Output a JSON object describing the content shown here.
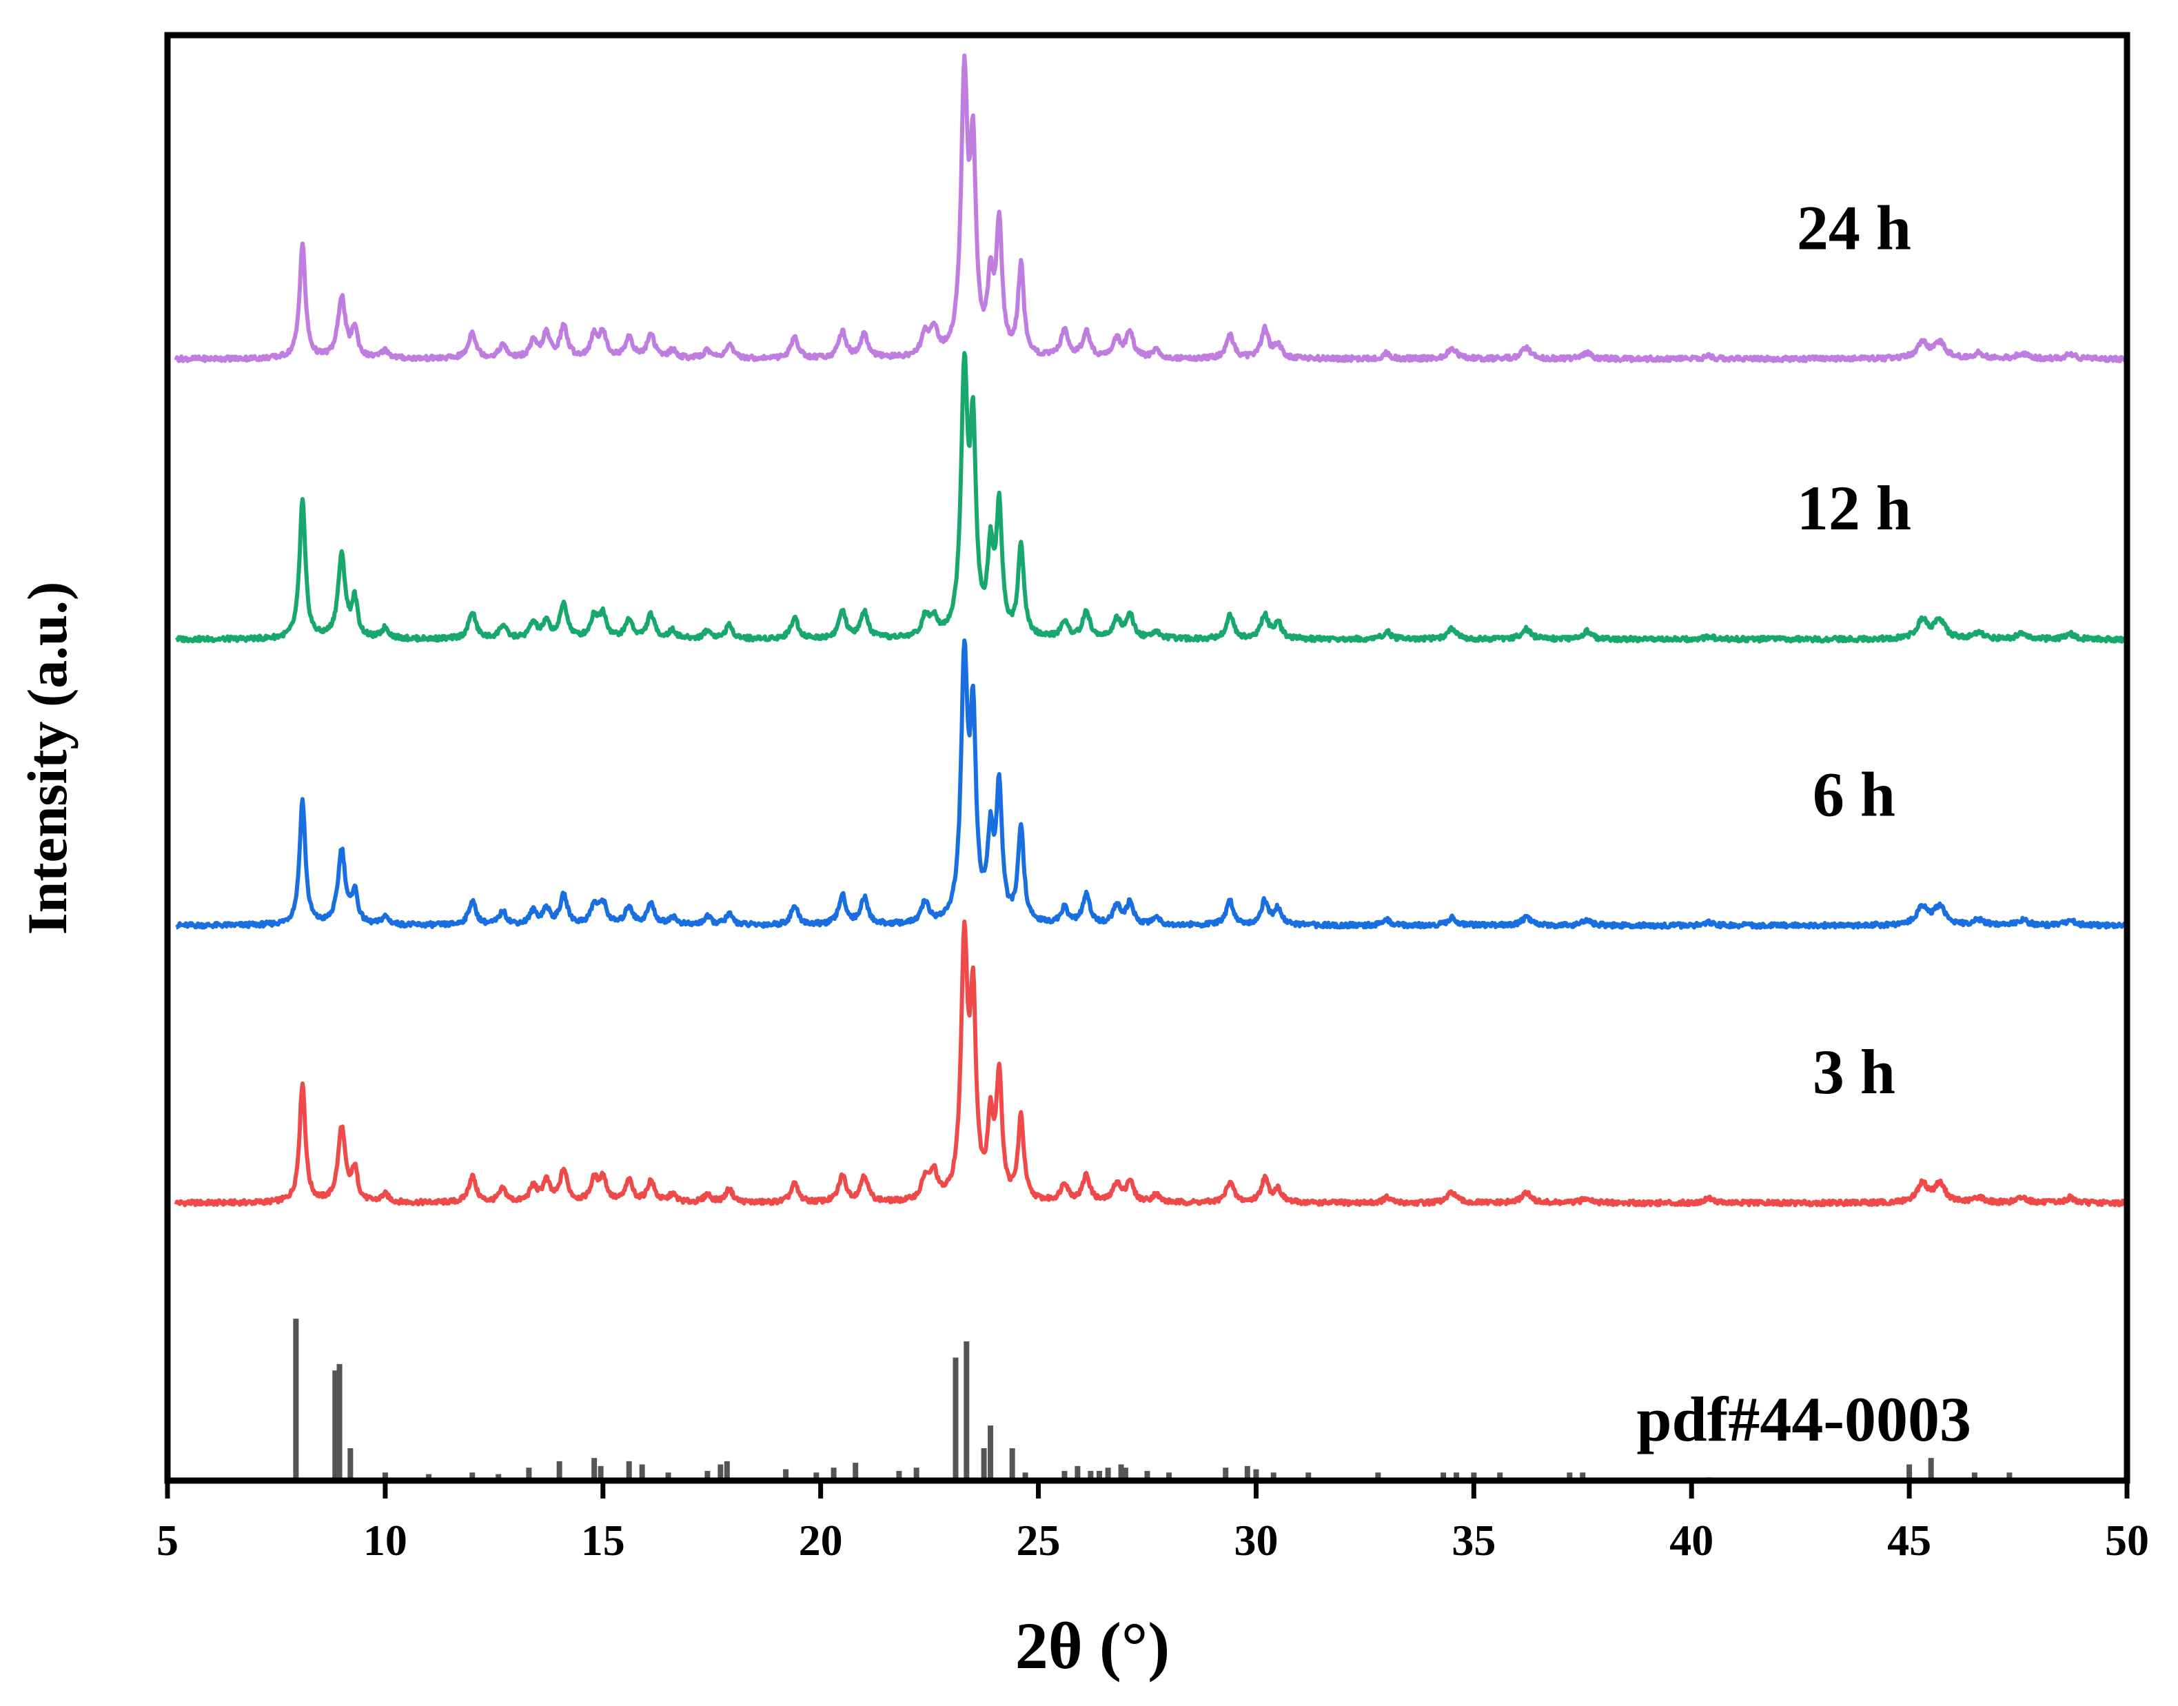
{
  "chart_data": {
    "type": "line",
    "title": "",
    "xlabel": "2θ (°)",
    "ylabel": "Intensity (a.u.)",
    "xlim": [
      5,
      50
    ],
    "ylim": [
      0,
      5
    ],
    "xticks": [
      5,
      10,
      15,
      20,
      25,
      30,
      35,
      40,
      45,
      50
    ],
    "xtick_labels": [
      "5",
      "10",
      "15",
      "20",
      "25",
      "30",
      "35",
      "40",
      "45",
      "50"
    ],
    "grid": false,
    "reference": {
      "name": "pdf#44-0003",
      "color": "#555555",
      "baseline": 0,
      "scale": 0.56,
      "peaks": [
        [
          7.95,
          1.0
        ],
        [
          8.85,
          0.68
        ],
        [
          8.95,
          0.72
        ],
        [
          9.2,
          0.2
        ],
        [
          10.0,
          0.05
        ],
        [
          11.0,
          0.04
        ],
        [
          12.0,
          0.05
        ],
        [
          12.6,
          0.04
        ],
        [
          13.3,
          0.08
        ],
        [
          14.0,
          0.12
        ],
        [
          14.8,
          0.14
        ],
        [
          14.95,
          0.09
        ],
        [
          15.6,
          0.12
        ],
        [
          15.9,
          0.1
        ],
        [
          16.5,
          0.05
        ],
        [
          17.4,
          0.06
        ],
        [
          17.7,
          0.1
        ],
        [
          17.85,
          0.12
        ],
        [
          19.2,
          0.07
        ],
        [
          19.9,
          0.05
        ],
        [
          20.3,
          0.08
        ],
        [
          20.8,
          0.11
        ],
        [
          21.8,
          0.06
        ],
        [
          22.2,
          0.08
        ],
        [
          23.1,
          0.76
        ],
        [
          23.35,
          0.86
        ],
        [
          23.75,
          0.2
        ],
        [
          23.9,
          0.34
        ],
        [
          24.4,
          0.2
        ],
        [
          24.7,
          0.05
        ],
        [
          25.6,
          0.06
        ],
        [
          25.9,
          0.09
        ],
        [
          26.2,
          0.06
        ],
        [
          26.4,
          0.06
        ],
        [
          26.6,
          0.08
        ],
        [
          26.9,
          0.1
        ],
        [
          27.0,
          0.08
        ],
        [
          27.5,
          0.06
        ],
        [
          28.0,
          0.05
        ],
        [
          29.3,
          0.08
        ],
        [
          29.8,
          0.09
        ],
        [
          30.0,
          0.07
        ],
        [
          30.4,
          0.05
        ],
        [
          31.2,
          0.05
        ],
        [
          32.8,
          0.05
        ],
        [
          34.3,
          0.05
        ],
        [
          34.6,
          0.05
        ],
        [
          35.0,
          0.05
        ],
        [
          35.6,
          0.05
        ],
        [
          37.2,
          0.05
        ],
        [
          37.5,
          0.05
        ],
        [
          40.4,
          0.02
        ],
        [
          45.0,
          0.1
        ],
        [
          45.5,
          0.14
        ],
        [
          46.5,
          0.05
        ],
        [
          47.3,
          0.05
        ]
      ]
    },
    "series": [
      {
        "name": "3 h",
        "color": "#ef4a4a",
        "baseline": 0.96,
        "scale": 0.92,
        "peaks": [
          [
            8.1,
            0.45,
            0.08
          ],
          [
            9.0,
            0.28,
            0.1
          ],
          [
            9.3,
            0.12,
            0.08
          ],
          [
            10.0,
            0.03,
            0.1
          ],
          [
            12.0,
            0.1,
            0.1
          ],
          [
            12.7,
            0.05,
            0.1
          ],
          [
            13.4,
            0.06,
            0.1
          ],
          [
            13.7,
            0.08,
            0.1
          ],
          [
            14.1,
            0.12,
            0.1
          ],
          [
            14.8,
            0.08,
            0.1
          ],
          [
            15.0,
            0.09,
            0.1
          ],
          [
            15.6,
            0.08,
            0.1
          ],
          [
            16.1,
            0.08,
            0.1
          ],
          [
            16.6,
            0.03,
            0.1
          ],
          [
            17.4,
            0.03,
            0.1
          ],
          [
            17.9,
            0.05,
            0.1
          ],
          [
            19.4,
            0.07,
            0.1
          ],
          [
            20.5,
            0.1,
            0.1
          ],
          [
            21.0,
            0.1,
            0.1
          ],
          [
            22.4,
            0.08,
            0.1
          ],
          [
            22.6,
            0.1,
            0.1
          ],
          [
            23.3,
            0.95,
            0.09
          ],
          [
            23.5,
            0.7,
            0.08
          ],
          [
            23.9,
            0.28,
            0.08
          ],
          [
            24.1,
            0.45,
            0.08
          ],
          [
            24.6,
            0.31,
            0.08
          ],
          [
            25.6,
            0.07,
            0.1
          ],
          [
            26.1,
            0.1,
            0.1
          ],
          [
            26.8,
            0.07,
            0.1
          ],
          [
            27.1,
            0.08,
            0.1
          ],
          [
            27.7,
            0.03,
            0.1
          ],
          [
            29.4,
            0.08,
            0.1
          ],
          [
            30.2,
            0.09,
            0.1
          ],
          [
            30.5,
            0.05,
            0.1
          ],
          [
            33.0,
            0.02,
            0.1
          ],
          [
            34.5,
            0.04,
            0.12
          ],
          [
            36.2,
            0.04,
            0.12
          ],
          [
            37.6,
            0.02,
            0.12
          ],
          [
            40.4,
            0.02,
            0.12
          ],
          [
            45.3,
            0.07,
            0.15
          ],
          [
            45.7,
            0.07,
            0.15
          ],
          [
            46.6,
            0.02,
            0.15
          ],
          [
            47.6,
            0.02,
            0.15
          ],
          [
            48.7,
            0.02,
            0.12
          ]
        ]
      },
      {
        "name": "6 h",
        "color": "#1a6fe0",
        "baseline": 1.92,
        "scale": 0.92,
        "peaks": [
          [
            8.1,
            0.47,
            0.08
          ],
          [
            9.0,
            0.28,
            0.1
          ],
          [
            9.3,
            0.12,
            0.08
          ],
          [
            10.0,
            0.03,
            0.1
          ],
          [
            12.0,
            0.09,
            0.1
          ],
          [
            12.7,
            0.05,
            0.1
          ],
          [
            13.4,
            0.05,
            0.1
          ],
          [
            13.7,
            0.06,
            0.1
          ],
          [
            14.1,
            0.11,
            0.1
          ],
          [
            14.8,
            0.07,
            0.1
          ],
          [
            15.0,
            0.08,
            0.1
          ],
          [
            15.6,
            0.07,
            0.1
          ],
          [
            16.1,
            0.08,
            0.1
          ],
          [
            16.6,
            0.03,
            0.1
          ],
          [
            17.4,
            0.03,
            0.1
          ],
          [
            17.9,
            0.04,
            0.1
          ],
          [
            19.4,
            0.07,
            0.1
          ],
          [
            20.5,
            0.11,
            0.1
          ],
          [
            21.0,
            0.1,
            0.1
          ],
          [
            22.4,
            0.08,
            0.1
          ],
          [
            23.3,
            0.96,
            0.09
          ],
          [
            23.5,
            0.72,
            0.08
          ],
          [
            23.9,
            0.3,
            0.08
          ],
          [
            24.1,
            0.49,
            0.08
          ],
          [
            24.6,
            0.36,
            0.08
          ],
          [
            25.6,
            0.06,
            0.1
          ],
          [
            26.1,
            0.11,
            0.1
          ],
          [
            26.8,
            0.07,
            0.1
          ],
          [
            27.1,
            0.08,
            0.1
          ],
          [
            27.7,
            0.03,
            0.1
          ],
          [
            29.4,
            0.09,
            0.1
          ],
          [
            30.2,
            0.09,
            0.1
          ],
          [
            30.5,
            0.06,
            0.1
          ],
          [
            33.0,
            0.02,
            0.1
          ],
          [
            34.5,
            0.03,
            0.12
          ],
          [
            36.2,
            0.03,
            0.12
          ],
          [
            37.6,
            0.02,
            0.12
          ],
          [
            40.4,
            0.01,
            0.12
          ],
          [
            45.3,
            0.07,
            0.15
          ],
          [
            45.7,
            0.07,
            0.15
          ],
          [
            46.6,
            0.02,
            0.15
          ],
          [
            47.6,
            0.02,
            0.15
          ],
          [
            48.7,
            0.02,
            0.12
          ]
        ]
      },
      {
        "name": "12 h",
        "color": "#18a86e",
        "baseline": 2.91,
        "scale": 0.92,
        "peaks": [
          [
            8.1,
            0.52,
            0.08
          ],
          [
            9.0,
            0.31,
            0.1
          ],
          [
            9.3,
            0.14,
            0.08
          ],
          [
            10.0,
            0.04,
            0.1
          ],
          [
            12.0,
            0.1,
            0.1
          ],
          [
            12.7,
            0.05,
            0.1
          ],
          [
            13.4,
            0.06,
            0.1
          ],
          [
            13.7,
            0.06,
            0.1
          ],
          [
            14.1,
            0.13,
            0.1
          ],
          [
            14.8,
            0.08,
            0.1
          ],
          [
            15.0,
            0.09,
            0.1
          ],
          [
            15.6,
            0.07,
            0.1
          ],
          [
            16.1,
            0.09,
            0.1
          ],
          [
            16.6,
            0.03,
            0.1
          ],
          [
            17.4,
            0.03,
            0.1
          ],
          [
            17.9,
            0.05,
            0.1
          ],
          [
            19.4,
            0.08,
            0.1
          ],
          [
            20.5,
            0.1,
            0.1
          ],
          [
            21.0,
            0.1,
            0.1
          ],
          [
            22.4,
            0.07,
            0.1
          ],
          [
            22.6,
            0.07,
            0.1
          ],
          [
            23.3,
            0.97,
            0.09
          ],
          [
            23.5,
            0.72,
            0.08
          ],
          [
            23.9,
            0.3,
            0.08
          ],
          [
            24.1,
            0.47,
            0.08
          ],
          [
            24.6,
            0.34,
            0.08
          ],
          [
            25.6,
            0.06,
            0.1
          ],
          [
            26.1,
            0.1,
            0.1
          ],
          [
            26.8,
            0.07,
            0.1
          ],
          [
            27.1,
            0.09,
            0.1
          ],
          [
            27.7,
            0.03,
            0.1
          ],
          [
            29.4,
            0.09,
            0.1
          ],
          [
            30.2,
            0.09,
            0.1
          ],
          [
            30.5,
            0.06,
            0.1
          ],
          [
            33.0,
            0.03,
            0.1
          ],
          [
            34.5,
            0.04,
            0.12
          ],
          [
            36.2,
            0.04,
            0.12
          ],
          [
            37.6,
            0.03,
            0.12
          ],
          [
            40.4,
            0.01,
            0.12
          ],
          [
            45.3,
            0.07,
            0.15
          ],
          [
            45.7,
            0.07,
            0.15
          ],
          [
            46.6,
            0.02,
            0.15
          ],
          [
            47.6,
            0.02,
            0.15
          ],
          [
            48.7,
            0.02,
            0.12
          ]
        ]
      },
      {
        "name": "24 h",
        "color": "#c07de0",
        "baseline": 3.88,
        "scale": 0.92,
        "peaks": [
          [
            8.1,
            0.43,
            0.08
          ],
          [
            9.0,
            0.23,
            0.1
          ],
          [
            9.3,
            0.11,
            0.08
          ],
          [
            10.0,
            0.03,
            0.1
          ],
          [
            12.0,
            0.1,
            0.1
          ],
          [
            12.7,
            0.05,
            0.1
          ],
          [
            13.4,
            0.06,
            0.1
          ],
          [
            13.7,
            0.09,
            0.1
          ],
          [
            14.1,
            0.12,
            0.1
          ],
          [
            14.8,
            0.08,
            0.1
          ],
          [
            15.0,
            0.09,
            0.1
          ],
          [
            15.6,
            0.08,
            0.1
          ],
          [
            16.1,
            0.09,
            0.1
          ],
          [
            16.6,
            0.03,
            0.1
          ],
          [
            17.4,
            0.03,
            0.1
          ],
          [
            17.9,
            0.05,
            0.1
          ],
          [
            19.4,
            0.08,
            0.1
          ],
          [
            20.5,
            0.1,
            0.1
          ],
          [
            21.0,
            0.09,
            0.1
          ],
          [
            22.4,
            0.08,
            0.1
          ],
          [
            22.6,
            0.1,
            0.1
          ],
          [
            23.3,
            1.02,
            0.09
          ],
          [
            23.5,
            0.72,
            0.08
          ],
          [
            23.9,
            0.26,
            0.08
          ],
          [
            24.1,
            0.48,
            0.08
          ],
          [
            24.6,
            0.34,
            0.08
          ],
          [
            25.6,
            0.1,
            0.1
          ],
          [
            26.1,
            0.1,
            0.1
          ],
          [
            26.8,
            0.07,
            0.1
          ],
          [
            27.1,
            0.1,
            0.1
          ],
          [
            27.7,
            0.03,
            0.1
          ],
          [
            29.4,
            0.09,
            0.1
          ],
          [
            30.2,
            0.11,
            0.1
          ],
          [
            30.5,
            0.05,
            0.1
          ],
          [
            33.0,
            0.02,
            0.1
          ],
          [
            34.5,
            0.04,
            0.12
          ],
          [
            36.2,
            0.04,
            0.12
          ],
          [
            37.6,
            0.02,
            0.12
          ],
          [
            40.4,
            0.01,
            0.12
          ],
          [
            45.3,
            0.06,
            0.15
          ],
          [
            45.7,
            0.06,
            0.15
          ],
          [
            46.6,
            0.02,
            0.15
          ],
          [
            47.6,
            0.02,
            0.15
          ],
          [
            48.7,
            0.02,
            0.12
          ]
        ]
      }
    ]
  }
}
